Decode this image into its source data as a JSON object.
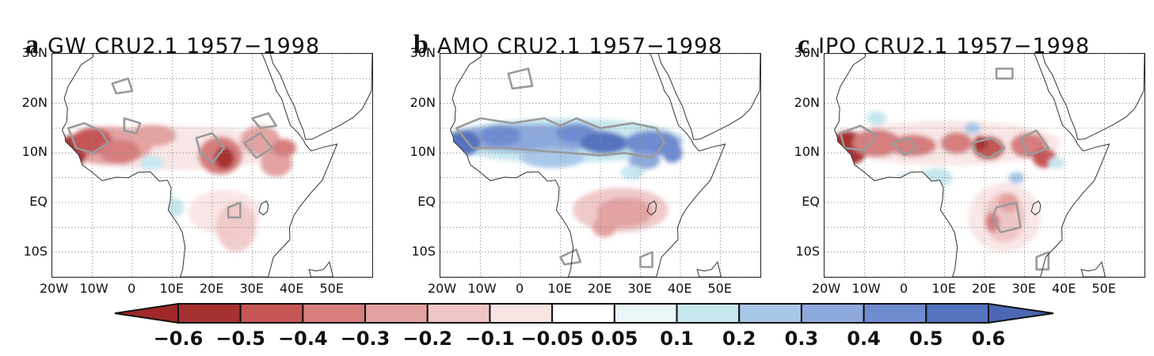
{
  "panels": [
    {
      "letter": "a",
      "title": "GW  CRU2.1  1957−1998",
      "pattern": "gw"
    },
    {
      "letter": "b",
      "title": "AMO  CRU2.1  1957−1998",
      "pattern": "amo"
    },
    {
      "letter": "c",
      "title": "IPO  CRU2.1  1957−1998",
      "pattern": "ipo"
    }
  ],
  "y_ticks": [
    "30N",
    "20N",
    "10N",
    "EQ",
    "10S"
  ],
  "x_ticks": [
    "20W",
    "10W",
    "0",
    "10E",
    "20E",
    "30E",
    "40E",
    "50E"
  ],
  "map_extent": {
    "lon": [
      -20,
      60
    ],
    "lat": [
      -15,
      30
    ]
  },
  "colorbar": {
    "labels": [
      "−0.6",
      "−0.5",
      "−0.4",
      "−0.3",
      "−0.2",
      "−0.1",
      "−0.05",
      "0.05",
      "0.1",
      "0.2",
      "0.3",
      "0.4",
      "0.5",
      "0.6"
    ],
    "colors": [
      "#a63131",
      "#c65656",
      "#d67e7e",
      "#e4a3a3",
      "#efc6c6",
      "#f8e3e3",
      "#ffffff",
      "#e9f6f8",
      "#c7e7ef",
      "#a9c8e8",
      "#8ea9dc",
      "#6f8cd0",
      "#5473be"
    ],
    "low_arrow_color": "#a02828",
    "high_arrow_color": "#4b66b3"
  },
  "colors": {
    "contour": "#9a9a9a",
    "coast": "#333333",
    "grid": "#8a8a8a"
  }
}
